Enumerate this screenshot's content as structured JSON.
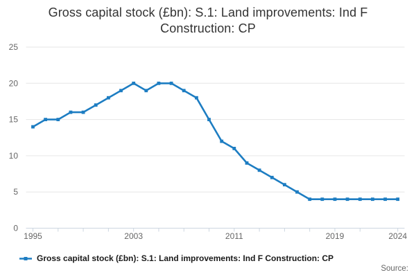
{
  "title": {
    "line1": "Gross capital stock (£bn): S.1: Land improvements: Ind F",
    "line2": "Construction: CP"
  },
  "legend": {
    "label": "Gross capital stock (£bn): S.1: Land improvements: Ind F Construction: CP"
  },
  "source": {
    "label": "Source:"
  },
  "colors": {
    "line": "#1d7dc2",
    "grid": "#e6e6e6",
    "axis": "#ccd6e0",
    "tick_label": "#666666",
    "title": "#333333",
    "legend_text": "#1a1a1a",
    "source_text": "#666666",
    "background": "#ffffff"
  },
  "chart_data": {
    "type": "line",
    "title": "Gross capital stock (£bn): S.1: Land improvements: Ind F Construction: CP",
    "xlabel": "",
    "ylabel": "",
    "x": [
      1995,
      1996,
      1997,
      1998,
      1999,
      2000,
      2001,
      2002,
      2003,
      2004,
      2005,
      2006,
      2007,
      2008,
      2009,
      2010,
      2011,
      2012,
      2013,
      2014,
      2015,
      2016,
      2017,
      2018,
      2019,
      2020,
      2021,
      2022,
      2023,
      2024
    ],
    "series": [
      {
        "name": "Gross capital stock (£bn): S.1: Land improvements: Ind F Construction: CP",
        "values": [
          14,
          15,
          15,
          16,
          16,
          17,
          18,
          19,
          20,
          19,
          20,
          20,
          19,
          18,
          15,
          12,
          11,
          9,
          8,
          7,
          6,
          5,
          4,
          4,
          4,
          4,
          4,
          4,
          4,
          4
        ]
      }
    ],
    "ylim": [
      0,
      25
    ],
    "yticks": [
      0,
      5,
      10,
      15,
      20,
      25
    ],
    "xticks": [
      1995,
      1997,
      1999,
      2001,
      2003,
      2005,
      2007,
      2009,
      2011,
      2013,
      2015,
      2017,
      2019,
      2021,
      2024
    ],
    "xtick_labels": [
      1995,
      2003,
      2011,
      2019,
      2024
    ],
    "grid": "horizontal",
    "legend_position": "bottom-left",
    "marker": "square"
  }
}
